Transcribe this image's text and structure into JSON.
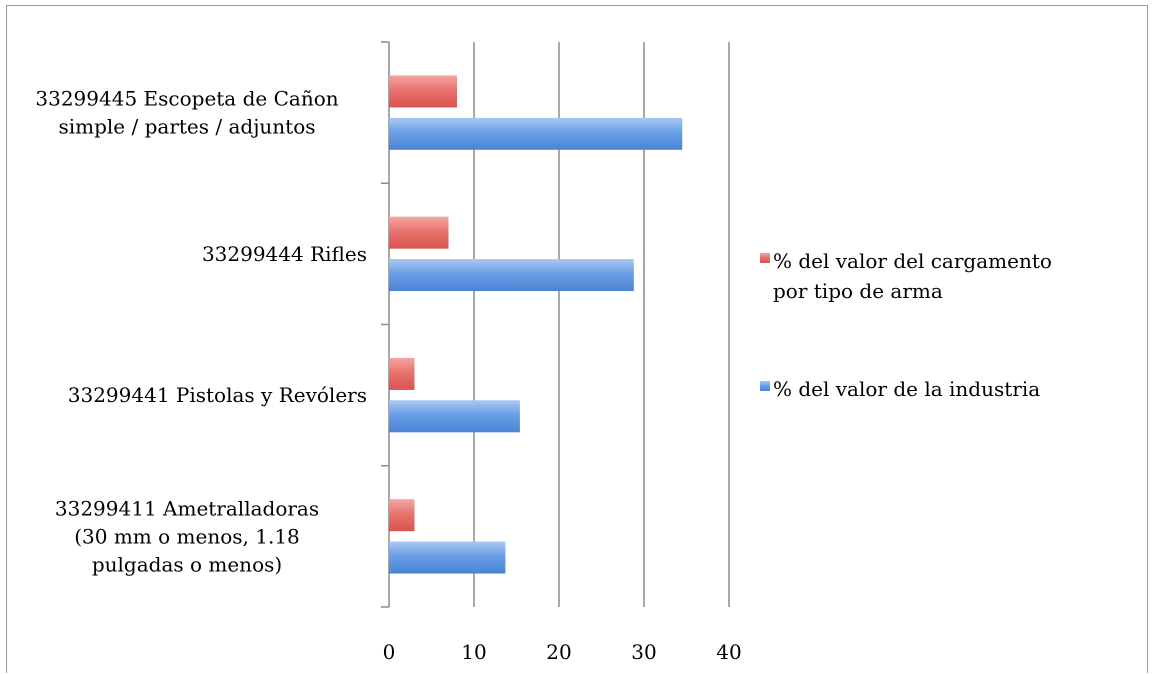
{
  "chart_data": {
    "type": "bar",
    "orientation": "horizontal",
    "categories": [
      [
        "33299445 Escopeta de Cañon",
        "simple / partes / adjuntos"
      ],
      [
        "33299444 Rifles"
      ],
      [
        "33299441 Pistolas y Revólers"
      ],
      [
        "33299411 Ametralladoras",
        "(30 mm o menos, 1.18",
        "pulgadas o menos)"
      ]
    ],
    "series": [
      {
        "name": "% del valor del cargamento por tipo de arma",
        "legend_lines": [
          "% del valor del cargamento",
          "por tipo de arma"
        ],
        "color": "#e8736e",
        "values": [
          8,
          7,
          3,
          3
        ]
      },
      {
        "name": "% del valor de la industria",
        "legend_lines": [
          "% del valor de la industria"
        ],
        "color": "#6a9fe6",
        "values": [
          34.5,
          28.8,
          15.4,
          13.7
        ]
      }
    ],
    "xlim": [
      0,
      40
    ],
    "xticks": [
      0,
      10,
      20,
      30,
      40
    ],
    "grid": true,
    "legend_position": "right",
    "title": "",
    "xlabel": "",
    "ylabel": ""
  }
}
